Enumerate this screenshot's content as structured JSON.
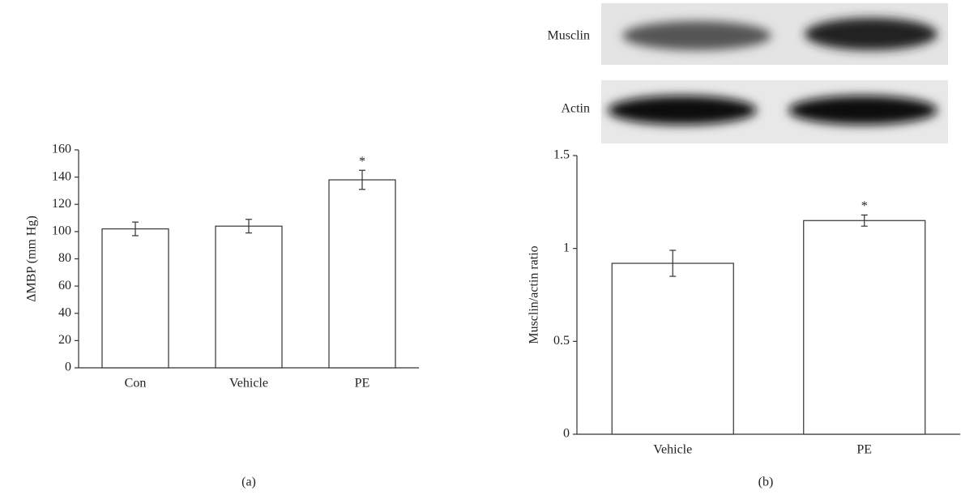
{
  "chart_data": [
    {
      "type": "bar",
      "ylabel": "ΔMBP (mm Hg)",
      "panel_label": "(a)",
      "categories": [
        "Con",
        "Vehicle",
        "PE"
      ],
      "values": [
        102,
        104,
        138
      ],
      "errors": [
        5,
        5,
        7
      ],
      "significance": [
        null,
        null,
        "*"
      ],
      "color": "#ffffff",
      "ylim": [
        0,
        160
      ],
      "yticks": [
        0,
        20,
        40,
        60,
        80,
        100,
        120,
        140,
        160
      ]
    },
    {
      "type": "bar",
      "ylabel": "Musclin/actin ratio",
      "panel_label": "(b)",
      "blot_labels": [
        "Musclin",
        "Actin"
      ],
      "categories": [
        "Vehicle",
        "PE"
      ],
      "values": [
        0.92,
        1.15
      ],
      "errors": [
        0.07,
        0.03
      ],
      "significance": [
        null,
        "*"
      ],
      "color": "#ffffff",
      "ylim": [
        0,
        1.5
      ],
      "yticks": [
        0,
        0.5,
        1,
        1.5
      ]
    }
  ]
}
